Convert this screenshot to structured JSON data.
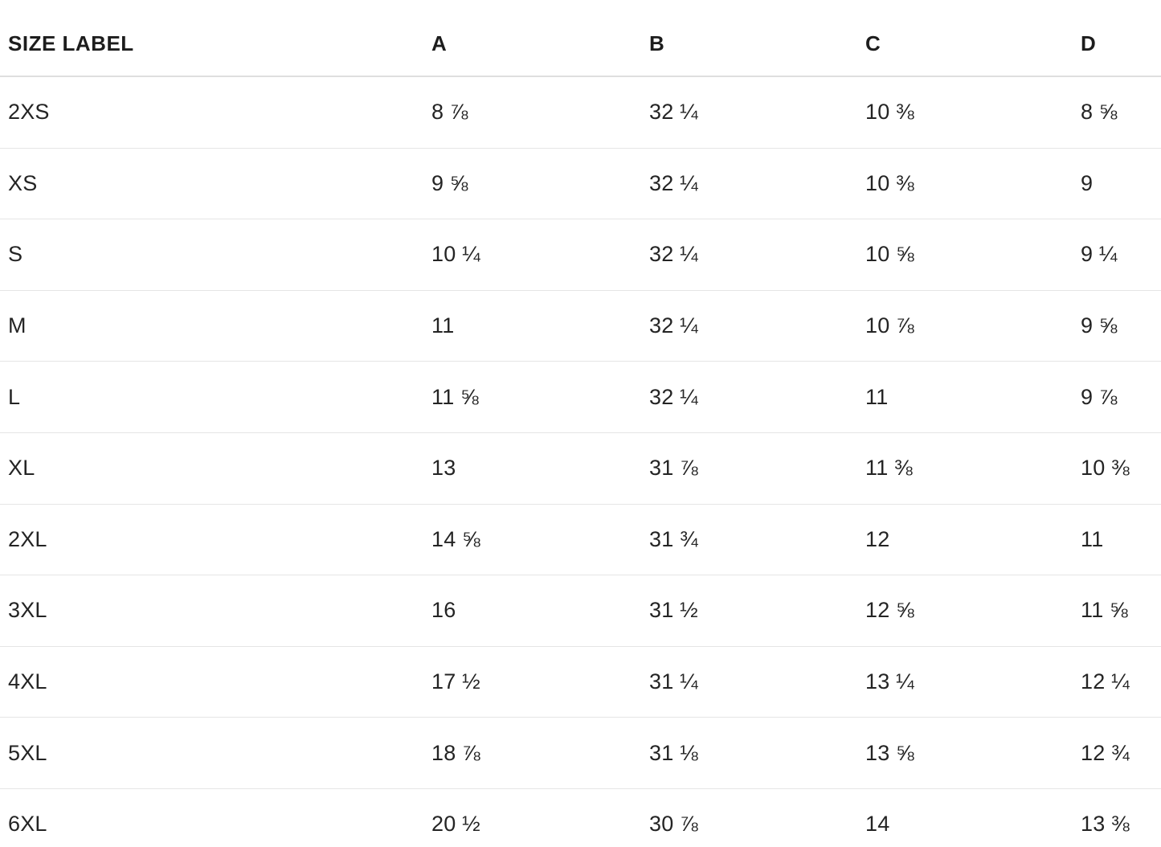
{
  "table": {
    "columns": [
      "SIZE LABEL",
      "A",
      "B",
      "C",
      "D"
    ],
    "rows": [
      {
        "cells": [
          "2XS",
          "8 ⅞",
          "32 ¼",
          "10 ⅜",
          "8 ⅝"
        ]
      },
      {
        "cells": [
          "XS",
          "9 ⅝",
          "32 ¼",
          "10 ⅜",
          "9"
        ]
      },
      {
        "cells": [
          "S",
          "10 ¼",
          "32 ¼",
          "10 ⅝",
          "9 ¼"
        ]
      },
      {
        "cells": [
          "M",
          "11",
          "32 ¼",
          "10 ⅞",
          "9 ⅝"
        ]
      },
      {
        "cells": [
          "L",
          "11 ⅝",
          "32 ¼",
          "11",
          "9 ⅞"
        ]
      },
      {
        "cells": [
          "XL",
          "13",
          "31 ⅞",
          "11 ⅜",
          "10 ⅜"
        ]
      },
      {
        "cells": [
          "2XL",
          "14 ⅝",
          "31 ¾",
          "12",
          "11"
        ]
      },
      {
        "cells": [
          "3XL",
          "16",
          "31 ½",
          "12 ⅝",
          "11 ⅝"
        ]
      },
      {
        "cells": [
          "4XL",
          "17 ½",
          "31 ¼",
          "13 ¼",
          "12 ¼"
        ]
      },
      {
        "cells": [
          "5XL",
          "18 ⅞",
          "31 ⅛",
          "13 ⅝",
          "12 ¾"
        ]
      },
      {
        "cells": [
          "6XL",
          "20 ½",
          "30 ⅞",
          "14",
          "13 ⅜"
        ]
      }
    ],
    "colors": {
      "text": "#222222",
      "header_text": "#1d1d1d",
      "header_border": "#dfdfdf",
      "row_border": "#e5e5e5",
      "background": "#ffffff"
    }
  }
}
